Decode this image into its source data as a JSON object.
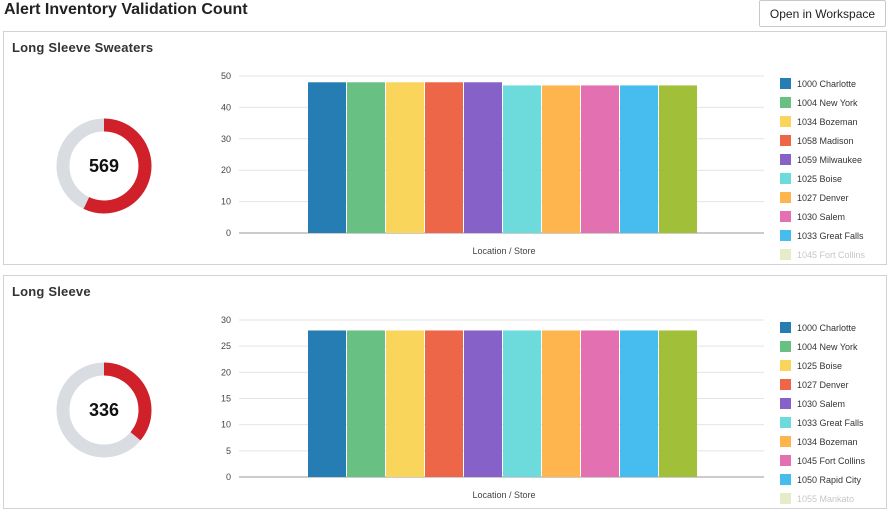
{
  "page": {
    "title": "Alert Inventory Validation Count",
    "open_button": "Open in Workspace"
  },
  "panels": [
    {
      "title": "Long Sleeve Sweaters",
      "total": "569",
      "donut_fraction": 0.57,
      "chart_data": {
        "type": "bar",
        "xlabel": "Location / Store",
        "ylabel": "",
        "ylim": [
          0,
          50
        ],
        "yticks": [
          0,
          10,
          20,
          30,
          40,
          50
        ],
        "categories": [
          "1000 Charlotte",
          "1004 New York",
          "1034 Bozeman",
          "1058 Madison",
          "1059 Milwaukee",
          "1025 Boise",
          "1027 Denver",
          "1030 Salem",
          "1033 Great Falls",
          "1045 Fort Collins"
        ],
        "values": [
          48,
          48,
          48,
          48,
          48,
          47,
          47,
          47,
          47,
          47
        ],
        "colors": [
          "#267db3",
          "#68c182",
          "#fad55c",
          "#ed6647",
          "#8561c8",
          "#6ddbdb",
          "#ffb54d",
          "#e371b2",
          "#47bdef",
          "#a2bf39"
        ],
        "legend_position": "right"
      }
    },
    {
      "title": "Long Sleeve",
      "total": "336",
      "donut_fraction": 0.36,
      "chart_data": {
        "type": "bar",
        "xlabel": "Location / Store",
        "ylabel": "",
        "ylim": [
          0,
          30
        ],
        "yticks": [
          0,
          5,
          10,
          15,
          20,
          25,
          30
        ],
        "categories": [
          "1000 Charlotte",
          "1004 New York",
          "1025 Boise",
          "1027 Denver",
          "1030 Salem",
          "1033 Great Falls",
          "1034 Bozeman",
          "1045 Fort Collins",
          "1050 Rapid City",
          "1055 Mankato"
        ],
        "values": [
          28,
          28,
          28,
          28,
          28,
          28,
          28,
          28,
          28,
          28
        ],
        "colors": [
          "#267db3",
          "#68c182",
          "#fad55c",
          "#ed6647",
          "#8561c8",
          "#6ddbdb",
          "#ffb54d",
          "#e371b2",
          "#47bdef",
          "#a2bf39"
        ],
        "legend_position": "right"
      }
    }
  ],
  "colors": {
    "donut_fill": "#d0202a",
    "donut_track": "#d9dde1",
    "grid": "#e4e4e4",
    "axis": "#9a9a9a"
  }
}
